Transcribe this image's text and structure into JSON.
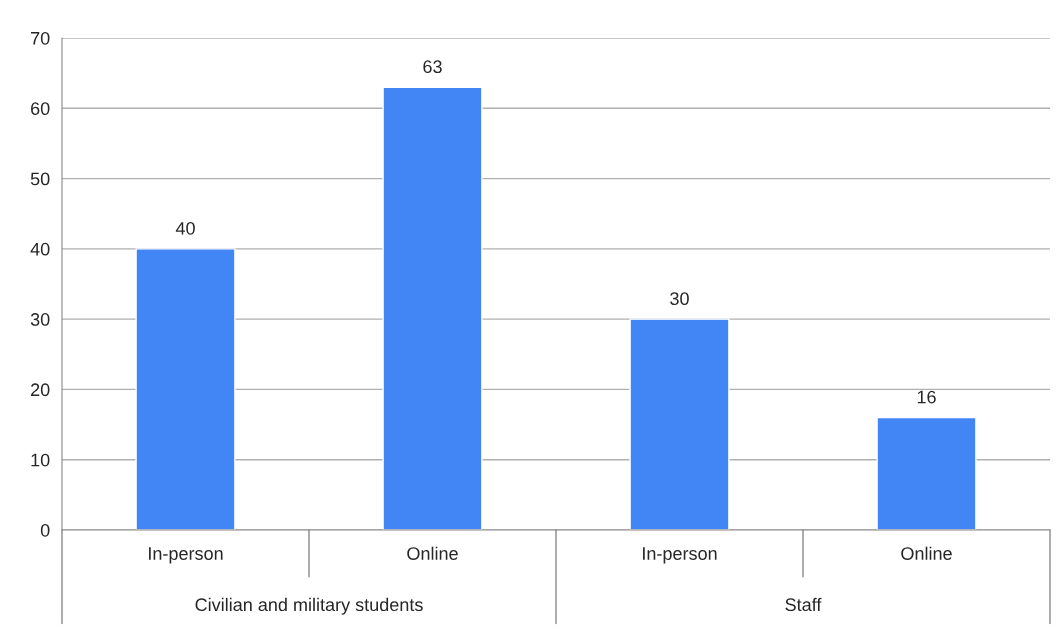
{
  "chart_data": {
    "type": "bar",
    "categories": [
      "In-person",
      "Online",
      "In-person",
      "Online"
    ],
    "values": [
      40,
      63,
      30,
      16
    ],
    "color": "#4285f4",
    "ylim": [
      0,
      70
    ],
    "yticks": [
      0,
      10,
      20,
      30,
      40,
      50,
      60,
      70
    ],
    "grid": "y",
    "data_labels": true,
    "legend": false,
    "annotations": [
      "Civilian and military students",
      "Staff"
    ]
  }
}
